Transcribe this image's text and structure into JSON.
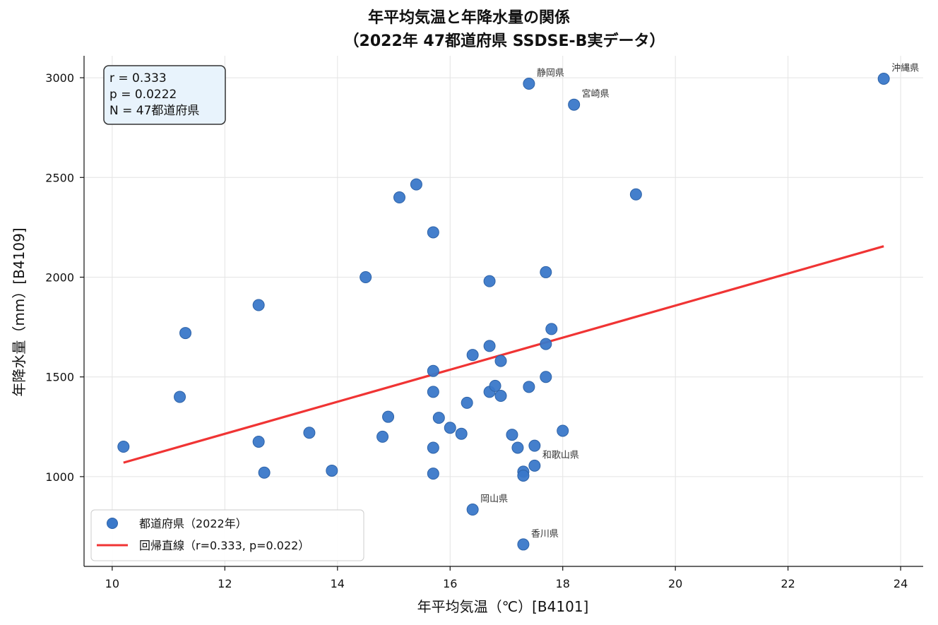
{
  "chart_data": {
    "type": "scatter",
    "title": "年平均気温と年降水量の関係",
    "subtitle": "（2022年 47都道府県 SSDSE-B実データ）",
    "xlabel": "年平均気温（℃）[B4101]",
    "ylabel": "年降水量（mm）[B4109]",
    "xlim": [
      9.5,
      24.4
    ],
    "ylim": [
      550,
      3110
    ],
    "xticks": [
      10,
      12,
      14,
      16,
      18,
      20,
      22,
      24
    ],
    "yticks": [
      1000,
      1500,
      2000,
      2500,
      3000
    ],
    "grid": true,
    "legend_position": "bottom-left",
    "colors": {
      "points": "#3a78c9",
      "regression": "#f03434"
    },
    "series": [
      {
        "name": "都道府県（2022年）",
        "points": [
          {
            "x": 10.2,
            "y": 1150
          },
          {
            "x": 11.2,
            "y": 1400
          },
          {
            "x": 11.3,
            "y": 1720
          },
          {
            "x": 12.6,
            "y": 1860
          },
          {
            "x": 12.6,
            "y": 1175
          },
          {
            "x": 12.7,
            "y": 1020
          },
          {
            "x": 13.5,
            "y": 1220
          },
          {
            "x": 13.9,
            "y": 1030
          },
          {
            "x": 14.5,
            "y": 2000
          },
          {
            "x": 14.8,
            "y": 1200
          },
          {
            "x": 14.9,
            "y": 1300
          },
          {
            "x": 15.1,
            "y": 2400
          },
          {
            "x": 15.4,
            "y": 2465
          },
          {
            "x": 15.7,
            "y": 2225
          },
          {
            "x": 15.7,
            "y": 1530
          },
          {
            "x": 15.7,
            "y": 1425
          },
          {
            "x": 15.7,
            "y": 1145
          },
          {
            "x": 15.7,
            "y": 1015
          },
          {
            "x": 15.8,
            "y": 1295
          },
          {
            "x": 16.0,
            "y": 1245
          },
          {
            "x": 16.2,
            "y": 1215
          },
          {
            "x": 16.3,
            "y": 1370
          },
          {
            "x": 16.4,
            "y": 1610
          },
          {
            "x": 16.4,
            "y": 835,
            "label": "岡山県"
          },
          {
            "x": 16.7,
            "y": 1980
          },
          {
            "x": 16.7,
            "y": 1655
          },
          {
            "x": 16.7,
            "y": 1425
          },
          {
            "x": 16.8,
            "y": 1455
          },
          {
            "x": 16.9,
            "y": 1580
          },
          {
            "x": 16.9,
            "y": 1405
          },
          {
            "x": 17.1,
            "y": 1210
          },
          {
            "x": 17.2,
            "y": 1145
          },
          {
            "x": 17.3,
            "y": 1025
          },
          {
            "x": 17.3,
            "y": 1005
          },
          {
            "x": 17.3,
            "y": 660,
            "label": "香川県"
          },
          {
            "x": 17.4,
            "y": 2970,
            "label": "静岡県"
          },
          {
            "x": 17.4,
            "y": 1450
          },
          {
            "x": 17.5,
            "y": 1155
          },
          {
            "x": 17.5,
            "y": 1055,
            "label": "和歌山県"
          },
          {
            "x": 17.7,
            "y": 2025
          },
          {
            "x": 17.7,
            "y": 1665
          },
          {
            "x": 17.7,
            "y": 1500
          },
          {
            "x": 17.8,
            "y": 1740
          },
          {
            "x": 18.0,
            "y": 1230
          },
          {
            "x": 18.2,
            "y": 2865,
            "label": "宮崎県"
          },
          {
            "x": 19.3,
            "y": 2415
          },
          {
            "x": 23.7,
            "y": 2995,
            "label": "沖縄県"
          }
        ]
      },
      {
        "name": "回帰直線（r=0.333, p=0.022）",
        "type": "line",
        "x": [
          10.2,
          23.7
        ],
        "y": [
          1070,
          2155
        ]
      }
    ],
    "stats_box": [
      "r = 0.333",
      "p = 0.0222",
      "N = 47都道府県"
    ]
  }
}
